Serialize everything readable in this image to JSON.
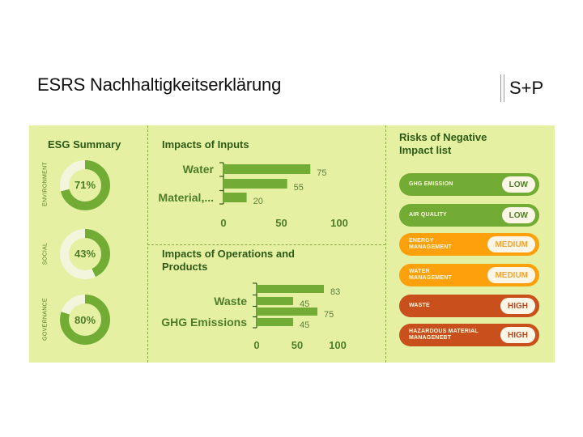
{
  "header": {
    "title": "ESRS Nachhaltigkeitserklärung",
    "logo": "S+P"
  },
  "colors": {
    "panel_bg": "#e6f0a3",
    "green": "#72ac34",
    "green_light": "#f3f6dc",
    "dark_green": "#2d5a15",
    "orange": "#fca10b",
    "red": "#c9501c",
    "badge_bg": "#fbf6e6"
  },
  "esg_summary": {
    "title": "ESG Summary",
    "items": [
      {
        "category": "ENVIRONMENT",
        "percent": 71,
        "label": "71%"
      },
      {
        "category": "SOCIAL",
        "percent": 43,
        "label": "43%"
      },
      {
        "category": "GOVERNANCE",
        "percent": 80,
        "label": "80%"
      }
    ]
  },
  "chart_data": [
    {
      "type": "bar",
      "orientation": "horizontal",
      "title": "Impacts of Inputs",
      "categories": [
        "Water",
        "",
        "Material,..."
      ],
      "values": [
        75,
        55,
        20
      ],
      "xlim": [
        0,
        100
      ],
      "xticks": [
        "0",
        "50",
        "100"
      ],
      "grid": false
    },
    {
      "type": "bar",
      "orientation": "horizontal",
      "title": "Impacts of Operations and Products",
      "categories": [
        "",
        "Waste",
        "",
        "GHG Emissions"
      ],
      "values": [
        83,
        45,
        75,
        45
      ],
      "xlim": [
        0,
        100
      ],
      "xticks": [
        "0",
        "50",
        "100"
      ],
      "grid": false
    }
  ],
  "risks": {
    "title": "Risks of Negative Impact list",
    "items": [
      {
        "label": "GHG EMISSION",
        "level": "LOW",
        "color": "#72ac34",
        "text_color": "#4e7d2a"
      },
      {
        "label": "AIR QUALITY",
        "level": "LOW",
        "color": "#72ac34",
        "text_color": "#4e7d2a"
      },
      {
        "label": "ENERGY\nMANAGEMENT",
        "level": "MEDIUM",
        "color": "#fca10b",
        "text_color": "#f0a53a"
      },
      {
        "label": "WATER\nMANAGEMENT",
        "level": "MEDIUM",
        "color": "#fca10b",
        "text_color": "#f0a53a"
      },
      {
        "label": "WASTE",
        "level": "HIGH",
        "color": "#c9501c",
        "text_color": "#b24a22"
      },
      {
        "label": "HAZARDOUS MATERIAL\nMANAGENEBT",
        "level": "HIGH",
        "color": "#c9501c",
        "text_color": "#b24a22"
      }
    ]
  }
}
